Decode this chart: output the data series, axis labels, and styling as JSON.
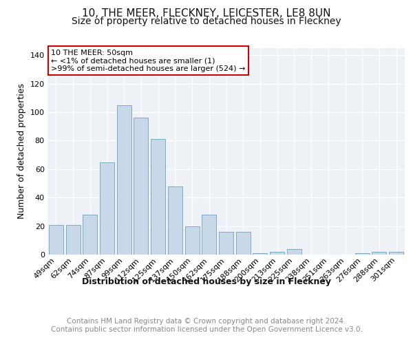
{
  "title": "10, THE MEER, FLECKNEY, LEICESTER, LE8 8UN",
  "subtitle": "Size of property relative to detached houses in Fleckney",
  "xlabel": "Distribution of detached houses by size in Fleckney",
  "ylabel": "Number of detached properties",
  "categories": [
    "49sqm",
    "62sqm",
    "74sqm",
    "87sqm",
    "99sqm",
    "112sqm",
    "125sqm",
    "137sqm",
    "150sqm",
    "162sqm",
    "175sqm",
    "188sqm",
    "200sqm",
    "213sqm",
    "225sqm",
    "238sqm",
    "251sqm",
    "263sqm",
    "276sqm",
    "288sqm",
    "301sqm"
  ],
  "values": [
    21,
    21,
    28,
    65,
    105,
    96,
    81,
    48,
    20,
    28,
    16,
    16,
    1,
    2,
    4,
    0,
    0,
    0,
    1,
    2,
    2
  ],
  "bar_color": "#c8d8e8",
  "bar_edgecolor": "#7aaac8",
  "annotation_box_text": "10 THE MEER: 50sqm\n← <1% of detached houses are smaller (1)\n>99% of semi-detached houses are larger (524) →",
  "annotation_box_edgecolor": "#cc0000",
  "ylim": [
    0,
    145
  ],
  "yticks": [
    0,
    20,
    40,
    60,
    80,
    100,
    120,
    140
  ],
  "background_color": "#eef2f7",
  "footer_text": "Contains HM Land Registry data © Crown copyright and database right 2024.\nContains public sector information licensed under the Open Government Licence v3.0.",
  "title_fontsize": 11,
  "subtitle_fontsize": 10,
  "xlabel_fontsize": 9,
  "ylabel_fontsize": 9,
  "footer_fontsize": 7.5,
  "tick_fontsize": 8
}
